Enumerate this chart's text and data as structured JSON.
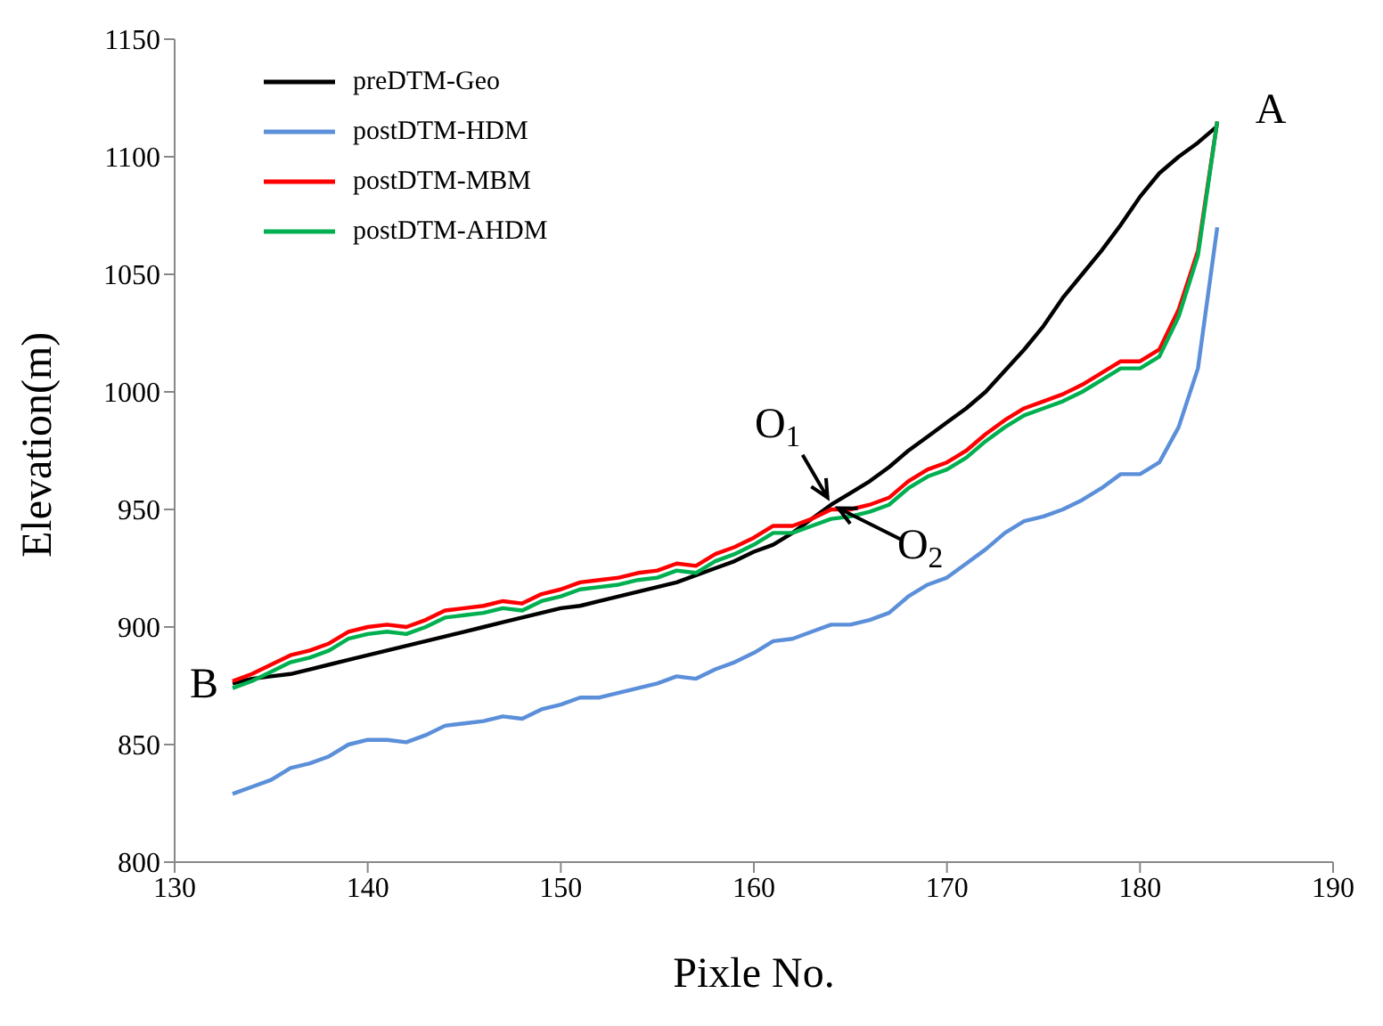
{
  "chart_data": {
    "type": "line",
    "xlabel": "Pixle No.",
    "ylabel": "Elevation(m)",
    "x": [
      133,
      134,
      135,
      136,
      137,
      138,
      139,
      140,
      141,
      142,
      143,
      144,
      145,
      146,
      147,
      148,
      149,
      150,
      151,
      152,
      153,
      154,
      155,
      156,
      157,
      158,
      159,
      160,
      161,
      162,
      163,
      164,
      165,
      166,
      167,
      168,
      169,
      170,
      171,
      172,
      173,
      174,
      175,
      176,
      177,
      178,
      179,
      180,
      181,
      182,
      183,
      184
    ],
    "series": [
      {
        "name": "preDTM-Geo",
        "color": "#000000",
        "values": [
          876,
          878,
          879,
          880,
          882,
          884,
          886,
          888,
          890,
          892,
          894,
          896,
          898,
          900,
          902,
          904,
          906,
          908,
          909,
          911,
          913,
          915,
          917,
          919,
          922,
          925,
          928,
          932,
          935,
          940,
          946,
          952,
          957,
          962,
          968,
          975,
          981,
          987,
          993,
          1000,
          1009,
          1018,
          1028,
          1040,
          1050,
          1060,
          1071,
          1083,
          1093,
          1100,
          1106,
          1113
        ]
      },
      {
        "name": "postDTM-HDM",
        "color": "#5b8fd9",
        "values": [
          829,
          832,
          835,
          840,
          842,
          845,
          850,
          852,
          852,
          851,
          854,
          858,
          859,
          860,
          862,
          861,
          865,
          867,
          870,
          870,
          872,
          874,
          876,
          879,
          878,
          882,
          885,
          889,
          894,
          895,
          898,
          901,
          901,
          903,
          906,
          913,
          918,
          921,
          927,
          933,
          940,
          945,
          947,
          950,
          954,
          959,
          965,
          965,
          970,
          985,
          1010,
          1070
        ]
      },
      {
        "name": "postDTM-MBM",
        "color": "#ff0000",
        "values": [
          877,
          880,
          884,
          888,
          890,
          893,
          898,
          900,
          901,
          900,
          903,
          907,
          908,
          909,
          911,
          910,
          914,
          916,
          919,
          920,
          921,
          923,
          924,
          927,
          926,
          931,
          934,
          938,
          943,
          943,
          946,
          950,
          950,
          952,
          955,
          962,
          967,
          970,
          975,
          982,
          988,
          993,
          996,
          999,
          1003,
          1008,
          1013,
          1013,
          1018,
          1035,
          1060,
          1115
        ]
      },
      {
        "name": "postDTM-AHDM",
        "color": "#00b050",
        "values": [
          874,
          877,
          881,
          885,
          887,
          890,
          895,
          897,
          898,
          897,
          900,
          904,
          905,
          906,
          908,
          907,
          911,
          913,
          916,
          917,
          918,
          920,
          921,
          924,
          923,
          928,
          931,
          935,
          940,
          940,
          943,
          946,
          947,
          949,
          952,
          959,
          964,
          967,
          972,
          979,
          985,
          990,
          993,
          996,
          1000,
          1005,
          1010,
          1010,
          1015,
          1032,
          1058,
          1115
        ]
      }
    ],
    "xlim": [
      130,
      190
    ],
    "xticks": [
      130,
      140,
      150,
      160,
      170,
      180,
      190
    ],
    "ylim": [
      800,
      1150
    ],
    "yticks": [
      800,
      850,
      900,
      950,
      1000,
      1050,
      1100,
      1150
    ],
    "grid": false,
    "legend": "top left",
    "marker": "none",
    "line_style": "solid",
    "annotations": [
      {
        "text": "A",
        "x": 184,
        "y": 1113
      },
      {
        "text": "B",
        "x": 133,
        "y": 876
      },
      {
        "text": "O$_{1}$",
        "x": 164,
        "y": 952
      },
      {
        "text": "O$_{2}$",
        "x": 164,
        "y": 946
      }
    ]
  }
}
